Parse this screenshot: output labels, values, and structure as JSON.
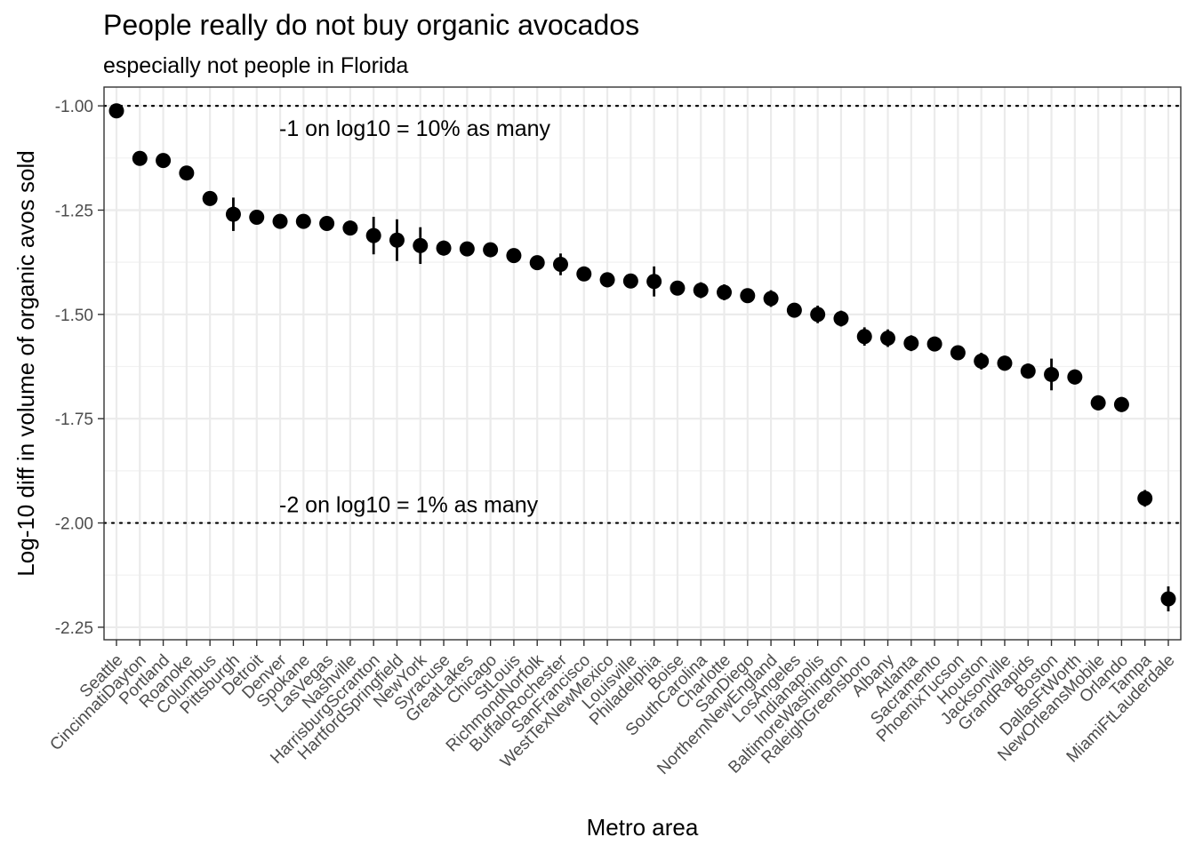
{
  "title": "People really do not buy organic avocados",
  "subtitle": "especially not people in Florida",
  "chart_data": {
    "type": "scatter",
    "title": "People really do not buy organic avocados",
    "subtitle": "especially not people in Florida",
    "xlabel": "Metro area",
    "ylabel": "Log-10 diff in volume of organic avos sold",
    "ylim": [
      -2.28,
      -0.955
    ],
    "yticks": [
      "-1.00",
      "-1.25",
      "-1.50",
      "-1.75",
      "-2.00",
      "-2.25"
    ],
    "grid": true,
    "categories": [
      "Seattle",
      "CincinnatiDayton",
      "Portland",
      "Roanoke",
      "Columbus",
      "Pittsburgh",
      "Detroit",
      "Denver",
      "Spokane",
      "LasVegas",
      "Nashville",
      "HarrisburgScranton",
      "HartfordSpringfield",
      "NewYork",
      "Syracuse",
      "GreatLakes",
      "Chicago",
      "StLouis",
      "RichmondNorfolk",
      "BuffaloRochester",
      "SanFrancisco",
      "WestTexNewMexico",
      "Louisville",
      "Philadelphia",
      "Boise",
      "SouthCarolina",
      "Charlotte",
      "SanDiego",
      "NorthernNewEngland",
      "LosAngeles",
      "Indianapolis",
      "BaltimoreWashington",
      "RaleighGreensboro",
      "Albany",
      "Atlanta",
      "Sacramento",
      "PhoenixTucson",
      "Houston",
      "Jacksonville",
      "GrandRapids",
      "Boston",
      "DallasFtWorth",
      "NewOrleansMobile",
      "Orlando",
      "Tampa",
      "MiamiFtLauderdale"
    ],
    "values": [
      -1.012,
      -1.126,
      -1.131,
      -1.161,
      -1.222,
      -1.26,
      -1.267,
      -1.277,
      -1.277,
      -1.282,
      -1.293,
      -1.311,
      -1.322,
      -1.335,
      -1.341,
      -1.343,
      -1.345,
      -1.359,
      -1.376,
      -1.38,
      -1.403,
      -1.417,
      -1.42,
      -1.421,
      -1.437,
      -1.442,
      -1.447,
      -1.455,
      -1.462,
      -1.49,
      -1.5,
      -1.51,
      -1.553,
      -1.557,
      -1.569,
      -1.571,
      -1.592,
      -1.612,
      -1.617,
      -1.636,
      -1.644,
      -1.65,
      -1.712,
      -1.716,
      -1.941,
      -2.182
    ],
    "error": [
      0.005,
      0.005,
      0.005,
      0.006,
      0.008,
      0.04,
      0.006,
      0.008,
      0.008,
      0.008,
      0.009,
      0.045,
      0.05,
      0.044,
      0.018,
      0.008,
      0.008,
      0.009,
      0.015,
      0.026,
      0.009,
      0.018,
      0.009,
      0.036,
      0.011,
      0.019,
      0.019,
      0.009,
      0.02,
      0.009,
      0.021,
      0.019,
      0.022,
      0.021,
      0.019,
      0.009,
      0.009,
      0.02,
      0.018,
      0.018,
      0.038,
      0.018,
      0.018,
      0.018,
      0.02,
      0.03
    ],
    "reference_lines": [
      {
        "y": -1.0,
        "label": "-1 on log10 = 10% as many"
      },
      {
        "y": -2.0,
        "label": "-2 on log10 = 1% as many"
      }
    ]
  }
}
